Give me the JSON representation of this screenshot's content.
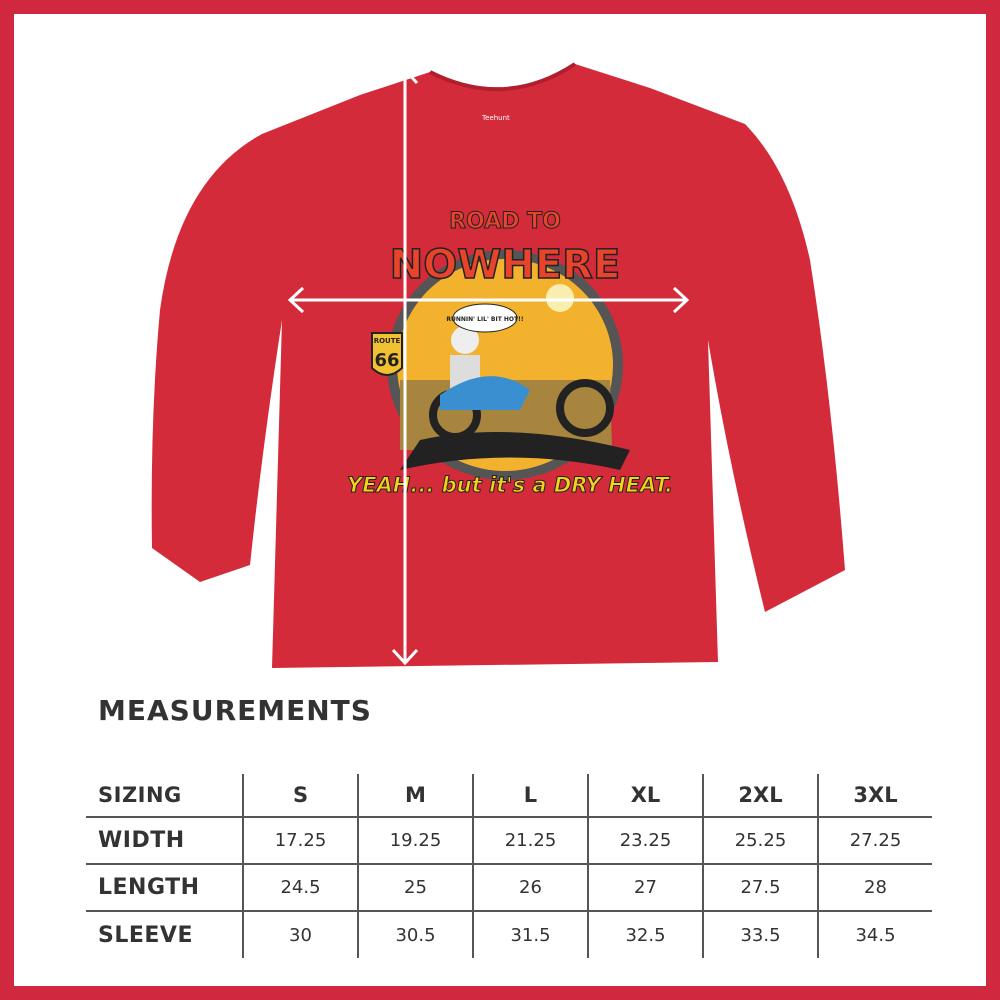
{
  "colors": {
    "frame": "#d0283e",
    "shirt": "#d42b3b",
    "text": "#333333",
    "arrows": "#ffffff"
  },
  "garment": {
    "label_brand": "Teehunt"
  },
  "graphic": {
    "title_line1": "ROAD TO",
    "title_line2": "NOWHERE",
    "speech_bubble": "RUNNIN' LIL' BIT HOT!!",
    "sign_top": "ROUTE",
    "sign_number": "66",
    "tagline": "YEAH... but it's a DRY HEAT."
  },
  "measurements": {
    "title": "MEASUREMENTS",
    "header": {
      "label": "SIZING",
      "sizes": [
        "S",
        "M",
        "L",
        "XL",
        "2XL",
        "3XL"
      ]
    },
    "rows": [
      {
        "label": "WIDTH",
        "values": [
          "17.25",
          "19.25",
          "21.25",
          "23.25",
          "25.25",
          "27.25"
        ]
      },
      {
        "label": "LENGTH",
        "values": [
          "24.5",
          "25",
          "26",
          "27",
          "27.5",
          "28"
        ]
      },
      {
        "label": "SLEEVE",
        "values": [
          "30",
          "30.5",
          "31.5",
          "32.5",
          "33.5",
          "34.5"
        ]
      }
    ]
  }
}
